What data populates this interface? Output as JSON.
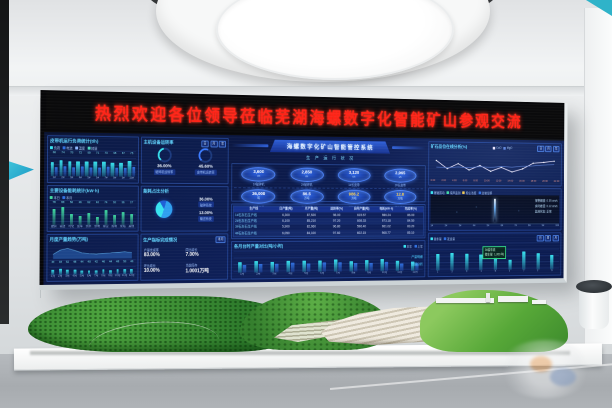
{
  "banner": {
    "text": "热烈欢迎各位领导莅临芜湖海螺数字化智能矿山参观交流"
  },
  "screen_header": {
    "title": "海螺数字化矿山智能管控系统",
    "subtitle": "生 产 运 行 状 况"
  },
  "chart_data": [
    {
      "id": "left-top-bars",
      "type": "bar",
      "title": "皮带机运行负荷统计(t/h)",
      "legend": [
        "负荷",
        "电流",
        "温度",
        "转速"
      ],
      "legend_colors": [
        "#38e3ef",
        "#2f6fe0",
        "#8fb8ff",
        "#4fd9c0"
      ],
      "categories": [
        "1#",
        "2#",
        "3#",
        "4#",
        "5#",
        "6#",
        "7#",
        "8#",
        "9#",
        "10#"
      ],
      "series": [
        {
          "values": [
            66,
            74,
            70,
            72,
            69,
            71,
            73,
            68,
            67,
            75
          ]
        },
        {
          "values": [
            40,
            46,
            43,
            45,
            42,
            44,
            46,
            41,
            40,
            47
          ]
        }
      ],
      "colors": [
        "#38e3ef",
        "#2f6fe0"
      ],
      "ylim": [
        0,
        100
      ],
      "show_values": true
    },
    {
      "id": "left-top-donuts",
      "type": "donut",
      "title": "主机设备运转率",
      "chips": [
        "日",
        "月",
        "年"
      ],
      "items": [
        {
          "label": "破碎机运转率",
          "value": 36.0,
          "text": "36.00%",
          "color": "#38e3ef"
        },
        {
          "label": "皮带机运转率",
          "value": 45.6,
          "text": "45.60%",
          "color": "#3b7bff"
        }
      ]
    },
    {
      "id": "left-mid-bars",
      "type": "bar",
      "title": "主要设备能耗统计(kW·h)",
      "legend": [
        "本日",
        "本月"
      ],
      "legend_colors": [
        "#3fd9a0",
        "#2f6fe0"
      ],
      "categories": [
        "破碎",
        "输送",
        "均化",
        "装车",
        "供水",
        "供电",
        "除尘",
        "照明",
        "泵站",
        "其他"
      ],
      "series": [
        {
          "values": [
            78,
            88,
            56,
            46,
            62,
            40,
            74,
            50,
            66,
            57
          ]
        }
      ],
      "colors": [
        "#3fd9a0"
      ],
      "ylim": [
        0,
        100
      ],
      "show_values": true
    },
    {
      "id": "left-mid-pie",
      "type": "pie",
      "title": "能耗占比分析",
      "slices": [
        {
          "value": 36,
          "color": "#38e3ef"
        },
        {
          "value": 13,
          "color": "#1e5fd6"
        },
        {
          "value": 51,
          "color": "#2f9ff0"
        }
      ],
      "callouts": [
        {
          "text": "36.00%",
          "label": "破碎系统"
        },
        {
          "text": "13.00%",
          "label": "输送系统"
        }
      ]
    },
    {
      "id": "left-bottom-area",
      "type": "area",
      "title": "月度产量趋势(万吨)",
      "line": [
        30,
        62,
        74,
        58,
        40,
        34,
        30,
        36,
        38,
        42,
        46,
        40
      ],
      "bars": [
        46,
        58,
        52,
        48,
        44,
        40,
        42,
        46,
        44,
        48,
        50,
        46
      ],
      "categories": [
        "1月",
        "2月",
        "3月",
        "4月",
        "5月",
        "6月",
        "7月",
        "8月",
        "9月",
        "10月",
        "11月",
        "12月"
      ]
    },
    {
      "id": "left-bottom-stats",
      "type": "stats",
      "title": "生产指标完成情况",
      "chip": "本月",
      "items": [
        {
          "label": "产量完成率",
          "value": "83.00%"
        },
        {
          "label": "同比增长",
          "value": "7.00%"
        },
        {
          "label": "环比增长",
          "value": "10.00%"
        },
        {
          "label": "当前库存",
          "value": "1.0001万吨"
        }
      ]
    },
    {
      "id": "center-gauges",
      "type": "gauges",
      "rows": [
        [
          {
            "label": "1#破碎机",
            "value": "3,600",
            "unit": "t/h"
          },
          {
            "label": "2#破碎机",
            "value": "2,850",
            "unit": "t/h"
          },
          {
            "label": "1#长皮带",
            "value": "3,120",
            "unit": "t/h"
          },
          {
            "label": "2#长皮带",
            "value": "2,965",
            "unit": "t/h"
          }
        ],
        [
          {
            "label": "当日产量",
            "value": "36,000",
            "unit": "吨"
          },
          {
            "label": "当月产量",
            "value": "86.5",
            "unit": "万吨"
          },
          {
            "label": "当年产量",
            "value": "986.2",
            "unit": "万吨",
            "accent": true
          },
          {
            "label": "矿山库存",
            "value": "12.8",
            "unit": "万吨",
            "accent": true
          }
        ]
      ]
    },
    {
      "id": "center-table",
      "type": "table",
      "headers": [
        "生产线",
        "日产量(吨)",
        "月产量(吨)",
        "运转率(%)",
        "台时产量(吨)",
        "电耗(kW·h)",
        "完成率(%)"
      ],
      "rows": [
        [
          "1#石灰石生产线",
          "6,300",
          "87,520",
          "98.00",
          "615.57",
          "986.24",
          "86.00"
        ],
        [
          "2#石灰石生产线",
          "6,100",
          "85,210",
          "97.20",
          "608.33",
          "973.18",
          "84.50"
        ],
        [
          "3#石灰石生产线",
          "5,900",
          "82,960",
          "96.80",
          "596.40",
          "961.02",
          "83.20"
        ],
        [
          "4#石灰石生产线",
          "6,050",
          "84,100",
          "97.60",
          "602.15",
          "968.77",
          "85.10"
        ]
      ]
    },
    {
      "id": "center-bottom-bars",
      "type": "bar",
      "title": "各月台时产量对比(吨/小时)",
      "legend": [
        "本年",
        "上年"
      ],
      "legend_colors": [
        "#38e3ef",
        "#2f6fe0"
      ],
      "categories": [
        "1月",
        "2月",
        "3月",
        "4月",
        "5月",
        "6月",
        "7月",
        "8月",
        "9月",
        "10月",
        "11月",
        "12月"
      ],
      "series": [
        {
          "values": [
            62,
            68,
            64,
            70,
            66,
            69,
            72,
            65,
            67,
            71,
            60,
            58
          ]
        },
        {
          "values": [
            48,
            52,
            50,
            55,
            51,
            54,
            57,
            50,
            52,
            56,
            46,
            44
          ]
        }
      ],
      "colors": [
        "#38e3ef",
        "#2f6fe0"
      ],
      "ylim": [
        0,
        100
      ],
      "show_values": false,
      "links": [
        "产量明细",
        "数据分析"
      ]
    },
    {
      "id": "right-line",
      "type": "line",
      "title": "矿石品位在线分析(%)",
      "chips": [
        "日",
        "月",
        "年"
      ],
      "legend": [
        "CaO",
        "MgO"
      ],
      "legend_colors": [
        "#f3e9ff",
        "#5a7fd8"
      ],
      "x": [
        "0:00",
        "2:00",
        "4:00",
        "6:00",
        "8:00",
        "10:00",
        "12:00",
        "14:00",
        "16:00",
        "18:00",
        "20:00",
        "22:00"
      ],
      "series": [
        {
          "color": "#f3e9ff",
          "values": [
            75,
            40,
            62,
            35,
            55,
            30,
            48,
            28,
            42,
            68,
            72,
            78
          ]
        },
        {
          "color": "#5a7fd8",
          "values": [
            46,
            44,
            48,
            45,
            50,
            47,
            52,
            49,
            54,
            56,
            60,
            63
          ]
        }
      ]
    },
    {
      "id": "right-mid",
      "type": "monitor",
      "legend": [
        "爆破振动",
        "噪声监测",
        "粉尘浓度",
        "边坡位移"
      ],
      "legend_colors": [
        "#38e3ef",
        "#3fd9a0",
        "#f0c84f",
        "#2f6fe0"
      ],
      "rows": [
        "报警阈值: 0.35 cm/s",
        "实时峰值: 0.12 cm/s",
        "监测状态: 正常"
      ],
      "categories": [
        "1#",
        "2#",
        "3#",
        "4#",
        "5#",
        "6#",
        "7#",
        "8#",
        "9#",
        "10#"
      ]
    },
    {
      "id": "right-bottom-bars",
      "type": "bar",
      "legend": [
        "装车量",
        "发运量"
      ],
      "legend_colors": [
        "#38e3ef",
        "#2f6fe0"
      ],
      "chips": [
        "日",
        "周",
        "月"
      ],
      "categories": [
        "1",
        "2",
        "3",
        "4",
        "5",
        "6",
        "7",
        "8",
        "9"
      ],
      "series": [
        {
          "values": [
            72,
            76,
            73,
            68,
            56,
            44,
            78,
            70,
            63
          ]
        }
      ],
      "colors": [
        "#38e3ef"
      ],
      "ylim": [
        0,
        100
      ],
      "show_values": false,
      "tooltip": [
        "3#装车线",
        "装车量: 1,260 吨"
      ]
    }
  ]
}
